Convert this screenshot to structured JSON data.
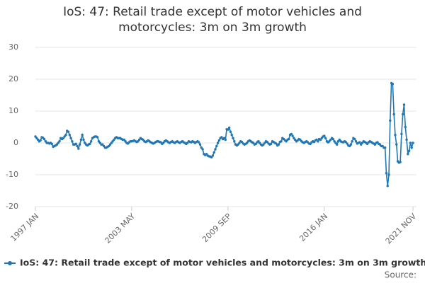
{
  "chart_data": {
    "type": "line",
    "title": "IoS: 47: Retail trade except of motor vehicles and motorcycles: 3m on 3m growth",
    "source_label": "Source:",
    "ylim": [
      -20,
      30
    ],
    "yticks": [
      -20,
      -10,
      0,
      10,
      20,
      30
    ],
    "grid": true,
    "categories": [
      "1997 JAN",
      null,
      null,
      null,
      null,
      null,
      null,
      null,
      null,
      null,
      null,
      null,
      null,
      null,
      null,
      null,
      null,
      null,
      null,
      null,
      null,
      null,
      null,
      null,
      null,
      null,
      null,
      null,
      null,
      null,
      null,
      null,
      null,
      null,
      null,
      null,
      null,
      null,
      null,
      null,
      null,
      null,
      null,
      null,
      null,
      null,
      null,
      null,
      null,
      null,
      null,
      null,
      null,
      null,
      null,
      null,
      null,
      null,
      null,
      null,
      null,
      null,
      null,
      null,
      null,
      null,
      null,
      null,
      null,
      null,
      null,
      null,
      null,
      null,
      null,
      null,
      "2003 MAY",
      null,
      null,
      null,
      null,
      null,
      null,
      null,
      null,
      null,
      null,
      null,
      null,
      null,
      null,
      null,
      null,
      null,
      null,
      null,
      null,
      null,
      null,
      null,
      null,
      null,
      null,
      null,
      null,
      null,
      null,
      null,
      null,
      null,
      null,
      null,
      null,
      null,
      null,
      null,
      null,
      null,
      null,
      null,
      null,
      null,
      null,
      null,
      null,
      null,
      null,
      null,
      null,
      null,
      null,
      null,
      null,
      null,
      null,
      null,
      null,
      null,
      null,
      null,
      null,
      null,
      null,
      null,
      null,
      null,
      null,
      null,
      null,
      null,
      null,
      null,
      "2009 SEP",
      null,
      null,
      null,
      null,
      null,
      null,
      null,
      null,
      null,
      null,
      null,
      null,
      null,
      null,
      null,
      null,
      null,
      null,
      null,
      null,
      null,
      null,
      null,
      null,
      null,
      null,
      null,
      null,
      null,
      null,
      null,
      null,
      null,
      null,
      null,
      null,
      null,
      null,
      null,
      null,
      null,
      null,
      null,
      null,
      null,
      null,
      null,
      null,
      null,
      null,
      null,
      null,
      null,
      null,
      null,
      null,
      null,
      null,
      null,
      null,
      null,
      null,
      null,
      null,
      null,
      null,
      null,
      null,
      null,
      null,
      null,
      null,
      null,
      null,
      null,
      "2016 JAN",
      null,
      null,
      null,
      null,
      null,
      null,
      null,
      null,
      null,
      null,
      null,
      null,
      null,
      null,
      null,
      null,
      null,
      null,
      null,
      null,
      null,
      null,
      null,
      null,
      null,
      null,
      null,
      null,
      null,
      null,
      null,
      null,
      null,
      null,
      null,
      null,
      null,
      null,
      null,
      null,
      null,
      null,
      null,
      null,
      null,
      null,
      null,
      null,
      null,
      null,
      null,
      null,
      null,
      null,
      null,
      null,
      null,
      null,
      null,
      null,
      null,
      null,
      null,
      null,
      null,
      null,
      null,
      null,
      null,
      "2021 NOV"
    ],
    "series": [
      {
        "name": "IoS: 47: Retail trade except of motor vehicles and motorcycles: 3m on 3m growth",
        "color": "#2077b4",
        "values": [
          2,
          1.5,
          1,
          0.5,
          0.8,
          1.8,
          1.6,
          1.2,
          0.5,
          0,
          0,
          -0.2,
          0,
          -0.3,
          -1.2,
          -1,
          -0.8,
          -0.5,
          0,
          0.5,
          1.5,
          1.2,
          1.5,
          2,
          2.5,
          3.8,
          3.5,
          2.5,
          1.5,
          0.5,
          -0.5,
          -0.5,
          -0.3,
          -1,
          -1.8,
          -0.5,
          1,
          2.5,
          1,
          0,
          -0.5,
          -0.8,
          -0.5,
          -0.3,
          0.5,
          1.5,
          1.8,
          2,
          2,
          1.8,
          0.5,
          0,
          -0.5,
          -0.5,
          -1,
          -1.5,
          -1.5,
          -1.2,
          -1,
          -0.5,
          0,
          0.5,
          1,
          1.5,
          1.8,
          1.5,
          1.5,
          1.5,
          1.2,
          1,
          1,
          0.5,
          0,
          -0.2,
          0.2,
          0.5,
          0.5,
          0.6,
          0.8,
          0.5,
          0.3,
          0.5,
          1,
          1.5,
          1.2,
          1,
          0.5,
          0.3,
          0.5,
          0.8,
          0.5,
          0.2,
          0,
          -0.2,
          0,
          0.3,
          0.5,
          0.5,
          0.3,
          0.2,
          -0.3,
          0,
          0.5,
          0.8,
          0.5,
          0.2,
          0,
          0.3,
          0.5,
          0.2,
          0,
          0.3,
          0.5,
          0.2,
          0,
          0.3,
          0.5,
          0.2,
          0,
          -0.3,
          0,
          0.5,
          0.3,
          0.2,
          0.5,
          0.3,
          0,
          0.3,
          0.5,
          0.2,
          -0.5,
          -1.5,
          -2,
          -3.5,
          -3.8,
          -3.5,
          -4,
          -4.2,
          -4.3,
          -4.5,
          -4,
          -3,
          -2,
          -1,
          0,
          0.8,
          1.5,
          1.8,
          1.2,
          1.5,
          1,
          4.3,
          4.2,
          4.8,
          3.5,
          2.5,
          1.5,
          0.5,
          -0.5,
          -0.8,
          -0.5,
          0,
          0.5,
          0.3,
          -0.2,
          -0.5,
          -0.3,
          0,
          0.5,
          0.8,
          0.5,
          0.2,
          0,
          -0.5,
          -0.3,
          0.2,
          0.5,
          0,
          -0.5,
          -0.8,
          -0.5,
          0,
          0.5,
          0.3,
          -0.2,
          -0.5,
          -0.3,
          0.5,
          0.3,
          0,
          -0.2,
          -0.8,
          -0.5,
          0.3,
          0.5,
          1.5,
          1.2,
          0.8,
          0.5,
          1,
          1.2,
          2.5,
          2.8,
          2.2,
          1.5,
          1,
          0.5,
          0.8,
          1.2,
          1,
          0.5,
          0.2,
          0,
          0.3,
          0.5,
          0.2,
          -0.2,
          -0.3,
          0.2,
          0.5,
          0.3,
          0.8,
          1,
          0.5,
          1.2,
          1,
          1.5,
          2,
          2.2,
          1.5,
          0.5,
          0.2,
          0.5,
          1,
          1.5,
          1.2,
          0.5,
          0,
          -0.5,
          0.5,
          1,
          0.5,
          0.3,
          0.2,
          0.5,
          0.3,
          -0.2,
          -0.8,
          -1,
          -0.5,
          0.5,
          1.5,
          1.2,
          0.5,
          -0.2,
          0,
          0.2,
          -0.5,
          0,
          0.5,
          0.3,
          0,
          -0.3,
          0.2,
          0.5,
          0.3,
          0,
          -0.2,
          -0.5,
          0,
          0.2,
          -0.3,
          -0.5,
          -1,
          -1,
          -1.5,
          -1.5,
          -9.5,
          -13.5,
          -10,
          7,
          18.8,
          18.5,
          9,
          2.5,
          -0.5,
          -5.8,
          -6.2,
          -6,
          2.8,
          9,
          12,
          5,
          1,
          -3.5,
          -2.5,
          0,
          -1.5,
          0
        ]
      }
    ]
  }
}
